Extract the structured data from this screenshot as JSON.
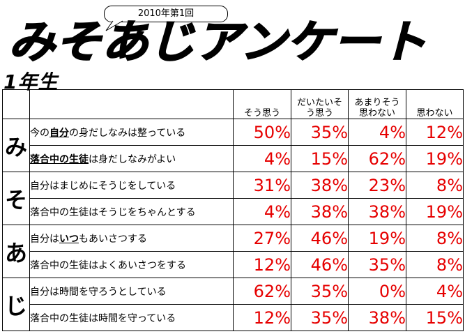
{
  "header": {
    "edition": "2010年第1回",
    "title": "みそあじアンケート",
    "grade": "1年生"
  },
  "columns": [
    "そう思う",
    "だいたいそう思う",
    "あまりそう思わない",
    "思わない"
  ],
  "columns_display": [
    [
      "そう思う"
    ],
    [
      "だいたいそ",
      "う思う"
    ],
    [
      "あまりそう",
      "思わない"
    ],
    [
      "思わない"
    ]
  ],
  "rows": [
    {
      "category": "み",
      "q_parts": [
        "今の",
        "自分",
        "の身だしなみは整っている"
      ],
      "values": [
        "50%",
        "35%",
        "4%",
        "12%"
      ]
    },
    {
      "category": "",
      "q_parts": [
        "落合中の生徒",
        "は身だしなみがよい"
      ],
      "values": [
        "4%",
        "15%",
        "62%",
        "19%"
      ]
    },
    {
      "category": "そ",
      "q_parts": [
        "自分はまじめにそうじをしている"
      ],
      "values": [
        "31%",
        "38%",
        "23%",
        "8%"
      ]
    },
    {
      "category": "",
      "q_parts": [
        "落合中の生徒はそうじをちゃんとする"
      ],
      "values": [
        "4%",
        "38%",
        "38%",
        "19%"
      ]
    },
    {
      "category": "あ",
      "q_parts": [
        "自分は",
        "いつ",
        "もあいさつする"
      ],
      "values": [
        "27%",
        "46%",
        "19%",
        "8%"
      ]
    },
    {
      "category": "",
      "q_parts": [
        "落合中の生徒はよくあいさつをする"
      ],
      "values": [
        "12%",
        "46%",
        "35%",
        "8%"
      ]
    },
    {
      "category": "じ",
      "q_parts": [
        "自分は時間を守ろうとしている"
      ],
      "values": [
        "62%",
        "35%",
        "0%",
        "4%"
      ]
    },
    {
      "category": "",
      "q_parts": [
        "落合中の生徒は時間を守っている"
      ],
      "values": [
        "12%",
        "35%",
        "38%",
        "15%"
      ]
    }
  ],
  "colors": {
    "percent": "#e60000",
    "text": "#000000"
  }
}
